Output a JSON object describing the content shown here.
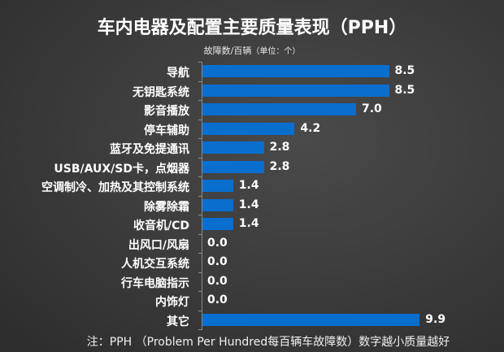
{
  "title": "车内电器及配置主要质量表现（PPH）",
  "subtitle": {
    "main": "故障数/百辆",
    "unit": "（单位：个）"
  },
  "note": "注：PPH （Problem Per Hundred每百辆车故障数）数字越小质量越好",
  "colors": {
    "bar": "#0a6ecf",
    "background": "#3a3a3a",
    "text": "#ffffff"
  },
  "chart_data": {
    "type": "bar",
    "orientation": "horizontal",
    "title": "车内电器及配置主要质量表现（PPH）",
    "subtitle": "故障数/百辆（单位：个）",
    "xlabel": "",
    "ylabel": "",
    "xlim": [
      0,
      10
    ],
    "grid": false,
    "legend": null,
    "data_labels": true,
    "categories": [
      "导航",
      "无钥匙系统",
      "影音播放",
      "停车辅助",
      "蓝牙及免提通讯",
      "USB/AUX/SD卡，点烟器",
      "空调制冷、加热及其控制系统",
      "除雾除霜",
      "收音机/CD",
      "出风口/风扇",
      "人机交互系统",
      "行车电脑指示",
      "内饰灯",
      "其它"
    ],
    "values": [
      8.5,
      8.5,
      7.0,
      4.2,
      2.8,
      2.8,
      1.4,
      1.4,
      1.4,
      0.0,
      0.0,
      0.0,
      0.0,
      9.9
    ],
    "value_labels": [
      "8.5",
      "8.5",
      "7.0",
      "4.2",
      "2.8",
      "2.8",
      "1.4",
      "1.4",
      "1.4",
      "0.0",
      "0.0",
      "0.0",
      "0.0",
      "9.9"
    ],
    "annotation": "注：PPH （Problem Per Hundred每百辆车故障数）数字越小质量越好"
  }
}
